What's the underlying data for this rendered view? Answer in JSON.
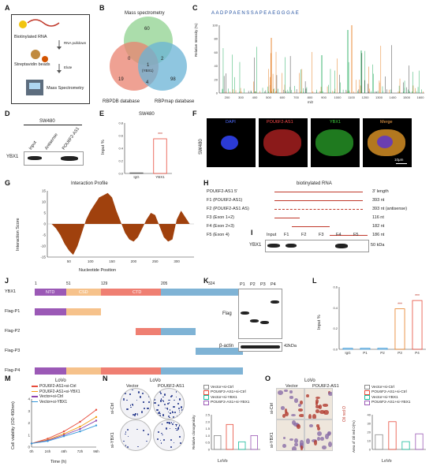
{
  "panel_letters": [
    "A",
    "B",
    "C",
    "D",
    "E",
    "F",
    "G",
    "H",
    "I",
    "J",
    "K",
    "L",
    "M",
    "N",
    "O"
  ],
  "panelA": {
    "steps": [
      "Biotinylated RNA",
      "RNA pulldown",
      "Streptavidin beads",
      "Elute",
      "Mass Spectrometry"
    ]
  },
  "panelB": {
    "title": "Mass spectrometry",
    "sets": [
      "RBPDB database",
      "RBPmap database"
    ],
    "counts": {
      "ms_only": "60",
      "ms_rbpdb": "0",
      "ms_rbpmap": "2",
      "center": "1",
      "center_label": "(YBX1)",
      "rbpdb_only": "19",
      "rbpdb_rbpmap": "4",
      "rbpmap_only": "98"
    },
    "colors": {
      "ms": "#8fd18f",
      "rbpdb": "#e9826f",
      "rbpmap": "#69b3d6"
    }
  },
  "panelC": {
    "sequence": "AADPPAENSSAPEAEGGGAE",
    "ylabel": "Relative Intensity (%)",
    "xlabel": "m/z",
    "xticks": [
      "200",
      "300",
      "400",
      "500",
      "600",
      "700",
      "800",
      "900",
      "1000",
      "1100",
      "1200",
      "1300",
      "1400",
      "1500",
      "1600"
    ],
    "yticks": [
      "0",
      "20",
      "40",
      "60",
      "80",
      "100"
    ]
  },
  "panelD": {
    "cell": "SW480",
    "lanes": [
      "Input",
      "Antisense",
      "POU6F2-AS1"
    ],
    "protein": "YBX1"
  },
  "panelE": {
    "title": "SW480",
    "ylabel": "Input %",
    "sig": "***",
    "chart_data": {
      "type": "bar",
      "categories": [
        "IgG",
        "YBX1"
      ],
      "values": [
        0.01,
        0.55
      ],
      "ylim": [
        0,
        0.8
      ],
      "yticks": [
        "0.0",
        "0.2",
        "0.4",
        "0.6",
        "0.8"
      ]
    }
  },
  "panelF": {
    "rowlabel": "SW480",
    "channels": [
      "DAPI",
      "POU6F2-AS1",
      "YBX1",
      "Merge"
    ],
    "scalebar": "10μm"
  },
  "panelG": {
    "title": "Interaction Profile",
    "xlabel": "Nucleotide Position",
    "ylabel": "Interaction Score",
    "xticks": [
      "50",
      "100",
      "150",
      "200",
      "250",
      "300"
    ],
    "yticks": [
      "15",
      "10",
      "5",
      "0",
      "-5",
      "-10",
      "-15"
    ],
    "chart_data": {
      "type": "area",
      "x": [
        10,
        20,
        30,
        40,
        50,
        60,
        70,
        80,
        90,
        100,
        110,
        120,
        130,
        140,
        150,
        160,
        170,
        180,
        190,
        200,
        210,
        220,
        230,
        240,
        250,
        260,
        270,
        280,
        290,
        300,
        310,
        320,
        330
      ],
      "y": [
        0,
        -2,
        -5,
        -9,
        -12,
        -14,
        -10,
        -4,
        2,
        6,
        9,
        12,
        13,
        14,
        12,
        6,
        1,
        -4,
        -7,
        -8,
        -6,
        -2,
        2,
        5,
        4,
        -1,
        -6,
        -8,
        -7,
        2,
        6,
        3,
        0
      ],
      "ylim": [
        -15,
        15
      ],
      "xlim": [
        0,
        340
      ]
    }
  },
  "panelH": {
    "title": "biotinylated RNA",
    "rows": [
      {
        "name": "POU6F2-AS1 5'",
        "length": "3' length"
      },
      {
        "name": "F1 (POU6F2-AS1)",
        "length": "393 nt"
      },
      {
        "name": "F2 (POU6F2-AS1 AS)",
        "length": "393 nt (antisense)"
      },
      {
        "name": "F3 (Exon 1+2)",
        "length": "116 nt"
      },
      {
        "name": "F4 (Exon 2+3)",
        "length": "182 nt"
      },
      {
        "name": "F5 (Exon 4)",
        "length": "186 nt"
      }
    ]
  },
  "panelI": {
    "lanes": [
      "Input",
      "F1",
      "F2",
      "F3",
      "F4",
      "F5"
    ],
    "protein": "YBX1",
    "kda": "50 kDa"
  },
  "panelJ": {
    "positions": [
      "1",
      "51",
      "129",
      "205",
      "324"
    ],
    "domains": [
      "NTD",
      "CSD",
      "CTD"
    ],
    "rows": [
      "YBX1",
      "Flag-P1",
      "Flag-P2",
      "Flag-P3",
      "Flag-P4"
    ],
    "colors": {
      "ntd": "#9b59b6",
      "csd": "#f6c28b",
      "ctd": "#ef7f72",
      "tail": "#7fb3d5"
    }
  },
  "panelK": {
    "lanes": [
      "P1",
      "P2",
      "P3",
      "P4"
    ],
    "rows": [
      "Flag",
      "β-actin"
    ],
    "kda": "42kDa"
  },
  "panelL": {
    "ylabel": "Input %",
    "sig": [
      "***",
      "***"
    ],
    "chart_data": {
      "type": "bar",
      "categories": [
        "IgG",
        "P1",
        "P2",
        "P3",
        "P4"
      ],
      "values": [
        0.01,
        0.01,
        0.01,
        0.39,
        0.47
      ],
      "ylim": [
        0,
        0.6
      ],
      "yticks": [
        "0.0",
        "0.2",
        "0.4",
        "0.6"
      ]
    }
  },
  "panelM": {
    "title": "LoVo",
    "xlabel": "Time (h)",
    "ylabel": "Cell viability (OD 450nm)",
    "legend": [
      "POU6F2-AS1+si-Ctrl",
      "POU6F2-AS1+si-YBX1",
      "Vector+si-Ctrl",
      "Vector+si-YBX1"
    ],
    "chart_data": {
      "type": "line",
      "x": [
        "0h",
        "24h",
        "48h",
        "72h",
        "96h"
      ],
      "series": [
        {
          "name": "POU6F2-AS1+si-Ctrl",
          "values": [
            0.3,
            0.7,
            1.3,
            2.1,
            3.1
          ],
          "color": "#e74c3c"
        },
        {
          "name": "POU6F2-AS1+si-YBX1",
          "values": [
            0.3,
            0.6,
            1.1,
            1.7,
            2.5
          ],
          "color": "#f39c12"
        },
        {
          "name": "Vector+si-Ctrl",
          "values": [
            0.3,
            0.55,
            1.0,
            1.5,
            2.2
          ],
          "color": "#8e44ad"
        },
        {
          "name": "Vector+si-YBX1",
          "values": [
            0.3,
            0.5,
            0.9,
            1.3,
            1.8
          ],
          "color": "#3498db"
        }
      ],
      "ylim": [
        0,
        4
      ],
      "yticks": [
        "0",
        "1",
        "2",
        "3",
        "4"
      ]
    }
  },
  "panelN": {
    "title": "LoVo",
    "cols": [
      "Vector",
      "POU6F2-AS1"
    ],
    "rows": [
      "si-Ctrl",
      "si-YBX1"
    ],
    "ylabel": "Relative clonogenicity",
    "xlabel": "LoVo",
    "legend": [
      "Vector+si-Ctrl",
      "POU6F2-AS1+si-Ctrl",
      "Vector+si-YBX1",
      "POU6F2-AS1+si-YBX1"
    ],
    "chart_data": {
      "type": "bar",
      "categories": [
        "Vector+si-Ctrl",
        "POU6F2-AS1+si-Ctrl",
        "Vector+si-YBX1",
        "POU6F2-AS1+si-YBX1"
      ],
      "values": [
        1.0,
        1.8,
        0.55,
        1.0
      ],
      "ylim": [
        0,
        2.5
      ],
      "yticks": [
        "0",
        "0.5",
        "1.0",
        "1.5",
        "2.0",
        "2.5"
      ]
    }
  },
  "panelO": {
    "title": "LoVo",
    "cols": [
      "Vector",
      "POU6F2-AS1"
    ],
    "rows": [
      "si-Ctrl",
      "si-YBX1"
    ],
    "stain": "Oil red O",
    "ylabel": "Area of Oil red O(%)",
    "xlabel": "LoVo",
    "legend": [
      "Vector+si-Ctrl",
      "POU6F2-AS1+si-Ctrl",
      "Vector+si-YBX1",
      "POU6F2-AS1+si-YBX1"
    ],
    "chart_data": {
      "type": "bar",
      "categories": [
        "Vector+si-Ctrl",
        "POU6F2-AS1+si-Ctrl",
        "Vector+si-YBX1",
        "POU6F2-AS1+si-YBX1"
      ],
      "values": [
        17,
        32,
        9,
        18
      ],
      "ylim": [
        0,
        40
      ],
      "yticks": [
        "0",
        "10",
        "20",
        "30",
        "40"
      ]
    }
  },
  "bar_colors": [
    "#888888",
    "#e74c3c",
    "#1abc9c",
    "#9b59b6"
  ]
}
